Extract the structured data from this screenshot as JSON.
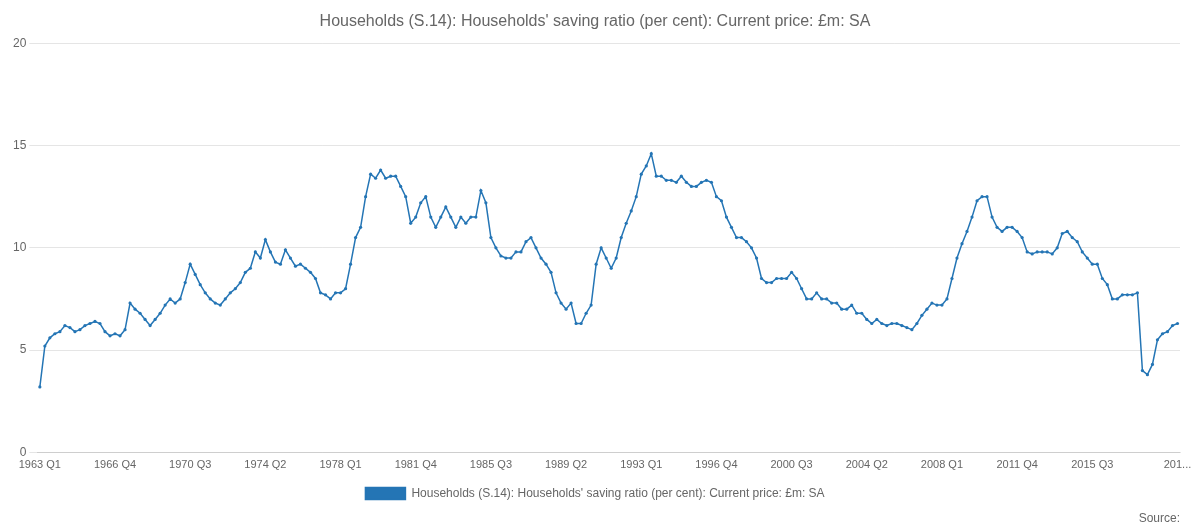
{
  "chart_data": {
    "type": "line",
    "title": "Households (S.14): Households' saving ratio (per cent): Current price: £m: SA",
    "source": "Source:",
    "background_color": "#FFFFFF",
    "categories": [
      "1963 Q1",
      null,
      null,
      null,
      null,
      null,
      null,
      null,
      null,
      null,
      null,
      null,
      null,
      null,
      null,
      "1966 Q4",
      null,
      null,
      null,
      null,
      null,
      null,
      null,
      null,
      null,
      null,
      null,
      null,
      null,
      null,
      "1970 Q3",
      null,
      null,
      null,
      null,
      null,
      null,
      null,
      null,
      null,
      null,
      null,
      null,
      null,
      null,
      "1974 Q2",
      null,
      null,
      null,
      null,
      null,
      null,
      null,
      null,
      null,
      null,
      null,
      null,
      null,
      null,
      "1978 Q1",
      null,
      null,
      null,
      null,
      null,
      null,
      null,
      null,
      null,
      null,
      null,
      null,
      null,
      null,
      "1981 Q4",
      null,
      null,
      null,
      null,
      null,
      null,
      null,
      null,
      null,
      null,
      null,
      null,
      null,
      null,
      "1985 Q3",
      null,
      null,
      null,
      null,
      null,
      null,
      null,
      null,
      null,
      null,
      null,
      null,
      null,
      null,
      "1989 Q2",
      null,
      null,
      null,
      null,
      null,
      null,
      null,
      null,
      null,
      null,
      null,
      null,
      null,
      null,
      "1993 Q1",
      null,
      null,
      null,
      null,
      null,
      null,
      null,
      null,
      null,
      null,
      null,
      null,
      null,
      null,
      "1996 Q4",
      null,
      null,
      null,
      null,
      null,
      null,
      null,
      null,
      null,
      null,
      null,
      null,
      null,
      null,
      "2000 Q3",
      null,
      null,
      null,
      null,
      null,
      null,
      null,
      null,
      null,
      null,
      null,
      null,
      null,
      null,
      "2004 Q2",
      null,
      null,
      null,
      null,
      null,
      null,
      null,
      null,
      null,
      null,
      null,
      null,
      null,
      null,
      "2008 Q1",
      null,
      null,
      null,
      null,
      null,
      null,
      null,
      null,
      null,
      null,
      null,
      null,
      null,
      null,
      "2011 Q4",
      null,
      null,
      null,
      null,
      null,
      null,
      null,
      null,
      null,
      null,
      null,
      null,
      null,
      null,
      "2015 Q3",
      null,
      null,
      null,
      null,
      null,
      null,
      null,
      null,
      null,
      null,
      null,
      null,
      null,
      null,
      null,
      null,
      "201..."
    ],
    "series": [
      {
        "name": "Households (S.14): Households' saving ratio (per cent): Current price: £m: SA",
        "color": "#2475B5",
        "marker": "o",
        "line_style": "solid",
        "values": [
          3.2,
          5.2,
          5.6,
          5.8,
          5.9,
          6.2,
          6.1,
          5.9,
          6.0,
          6.2,
          6.3,
          6.4,
          6.3,
          5.9,
          5.7,
          5.8,
          5.7,
          6.0,
          7.3,
          7.0,
          6.8,
          6.5,
          6.2,
          6.5,
          6.8,
          7.2,
          7.5,
          7.3,
          7.5,
          8.3,
          9.2,
          8.7,
          8.2,
          7.8,
          7.5,
          7.3,
          7.2,
          7.5,
          7.8,
          8.0,
          8.3,
          8.8,
          9.0,
          9.8,
          9.5,
          10.4,
          9.8,
          9.3,
          9.2,
          9.9,
          9.5,
          9.1,
          9.2,
          9.0,
          8.8,
          8.5,
          7.8,
          7.7,
          7.5,
          7.8,
          7.8,
          8.0,
          9.2,
          10.5,
          11.0,
          12.5,
          13.6,
          13.4,
          13.8,
          13.4,
          13.5,
          13.5,
          13.0,
          12.5,
          11.2,
          11.5,
          12.2,
          12.5,
          11.5,
          11.0,
          11.5,
          12.0,
          11.5,
          11.0,
          11.5,
          11.2,
          11.5,
          11.5,
          12.8,
          12.2,
          10.5,
          10.0,
          9.6,
          9.5,
          9.5,
          9.8,
          9.8,
          10.3,
          10.5,
          10.0,
          9.5,
          9.2,
          8.8,
          7.8,
          7.3,
          7.0,
          7.3,
          6.3,
          6.3,
          6.8,
          7.2,
          9.2,
          10.0,
          9.5,
          9.0,
          9.5,
          10.5,
          11.2,
          11.8,
          12.5,
          13.6,
          14.0,
          14.6,
          13.5,
          13.5,
          13.3,
          13.3,
          13.2,
          13.5,
          13.2,
          13.0,
          13.0,
          13.2,
          13.3,
          13.2,
          12.5,
          12.3,
          11.5,
          11.0,
          10.5,
          10.5,
          10.3,
          10.0,
          9.5,
          8.5,
          8.3,
          8.3,
          8.5,
          8.5,
          8.5,
          8.8,
          8.5,
          8.0,
          7.5,
          7.5,
          7.8,
          7.5,
          7.5,
          7.3,
          7.3,
          7.0,
          7.0,
          7.2,
          6.8,
          6.8,
          6.5,
          6.3,
          6.5,
          6.3,
          6.2,
          6.3,
          6.3,
          6.2,
          6.1,
          6.0,
          6.3,
          6.7,
          7.0,
          7.3,
          7.2,
          7.2,
          7.5,
          8.5,
          9.5,
          10.2,
          10.8,
          11.5,
          12.3,
          12.5,
          12.5,
          11.5,
          11.0,
          10.8,
          11.0,
          11.0,
          10.8,
          10.5,
          9.8,
          9.7,
          9.8,
          9.8,
          9.8,
          9.7,
          10.0,
          10.7,
          10.8,
          10.5,
          10.3,
          9.8,
          9.5,
          9.2,
          9.2,
          8.5,
          8.2,
          7.5,
          7.5,
          7.7,
          7.7,
          7.7,
          7.8,
          4.0,
          3.8,
          4.3,
          5.5,
          5.8,
          5.9,
          6.2,
          6.3
        ]
      }
    ],
    "ylim": [
      0,
      20
    ],
    "yticks": [
      0,
      5,
      10,
      15,
      20
    ],
    "grid": "y",
    "legend": "bottom"
  }
}
